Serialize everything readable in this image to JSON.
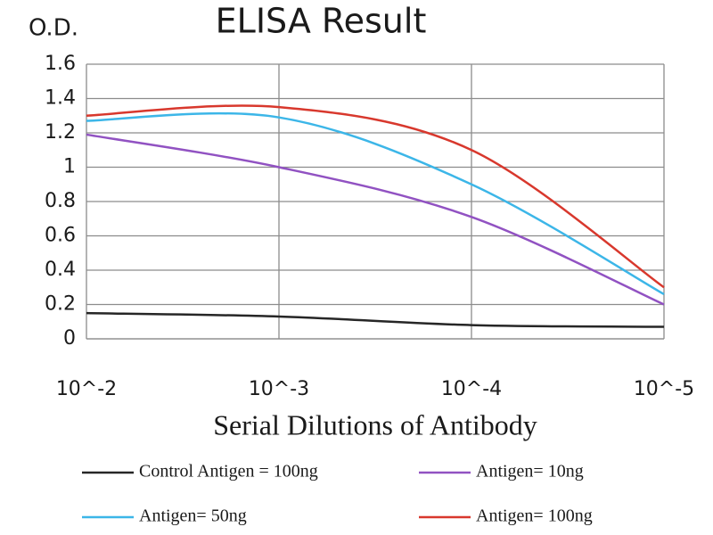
{
  "chart_data": {
    "type": "line",
    "title": "ELISA Result",
    "y_label": "O.D.",
    "x_label": "Serial Dilutions of Antibody",
    "categories": [
      "10^-2",
      "10^-3",
      "10^-4",
      "10^-5"
    ],
    "series": [
      {
        "name": "Control Antigen = 100ng",
        "color": "#262626",
        "values": [
          0.15,
          0.13,
          0.08,
          0.07
        ]
      },
      {
        "name": "Antigen= 10ng",
        "color": "#9152c2",
        "values": [
          1.19,
          1.0,
          0.71,
          0.2
        ]
      },
      {
        "name": "Antigen= 50ng",
        "color": "#3cb6e8",
        "values": [
          1.27,
          1.29,
          0.9,
          0.26
        ]
      },
      {
        "name": "Antigen= 100ng",
        "color": "#d8382d",
        "values": [
          1.3,
          1.35,
          1.1,
          0.3
        ]
      }
    ],
    "ylim": [
      0,
      1.6
    ],
    "yticks": [
      0,
      0.2,
      0.4,
      0.6,
      0.8,
      1,
      1.2,
      1.4,
      1.6
    ],
    "grid": true
  }
}
